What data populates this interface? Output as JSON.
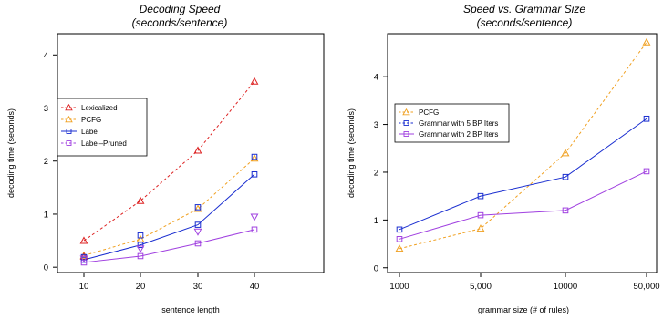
{
  "chart_data": [
    {
      "type": "line",
      "title": "Decoding Speed",
      "subtitle": "(seconds/sentence)",
      "xlabel": "sentence length",
      "ylabel": "decoding time (seconds)",
      "x": [
        10,
        20,
        30,
        40
      ],
      "x_tick_labels": [
        "10",
        "20",
        "30",
        "40"
      ],
      "y_ticks": [
        0,
        1,
        2,
        3,
        4
      ],
      "y_tick_labels": [
        "0",
        "1",
        "2",
        "3",
        "4"
      ],
      "ylim": [
        -0.1,
        4.4
      ],
      "grid": false,
      "legend_position": "left",
      "series": [
        {
          "name": "Lexicalized",
          "values": [
            0.5,
            1.25,
            2.2,
            3.5
          ],
          "color": "#dd2222",
          "marker": "triangle-up",
          "dash": "dashed"
        },
        {
          "name": "PCFG",
          "values": [
            0.22,
            0.53,
            1.1,
            2.05
          ],
          "color": "#f0a020",
          "marker": "triangle-up",
          "dash": "dashed"
        },
        {
          "name": "Label",
          "values": [
            0.14,
            0.42,
            0.8,
            1.75
          ],
          "color": "#1a2ed0",
          "marker": "square",
          "dash": "solid"
        },
        {
          "name": "Label–Pruned",
          "values": [
            0.09,
            0.21,
            0.45,
            0.71
          ],
          "color": "#a040e0",
          "marker": "square",
          "dash": "solid"
        }
      ],
      "extra_points": [
        {
          "series": "Lexicalized",
          "marker": "triangle-up",
          "color": "#dd2222",
          "points": [
            [
              10,
              0.2
            ]
          ]
        },
        {
          "series": "Label",
          "marker": "square",
          "color": "#1a2ed0",
          "points": [
            [
              10,
              0.19
            ],
            [
              20,
              0.6
            ],
            [
              30,
              1.13
            ],
            [
              40,
              2.08
            ]
          ]
        },
        {
          "series": "Label–Pruned",
          "marker": "triangle-down",
          "color": "#a040e0",
          "points": [
            [
              10,
              0.16
            ],
            [
              20,
              0.35
            ],
            [
              30,
              0.67
            ],
            [
              40,
              0.95
            ]
          ]
        }
      ]
    },
    {
      "type": "line",
      "title": "Speed vs. Grammar Size",
      "subtitle": "(seconds/sentence)",
      "xlabel": "grammar size (# of rules)",
      "ylabel": "decoding time (seconds)",
      "x": [
        1000,
        5000,
        10000,
        50000
      ],
      "x_tick_labels": [
        "1000",
        "5,000",
        "10000",
        "50,000"
      ],
      "y_ticks": [
        0,
        1,
        2,
        3,
        4
      ],
      "y_tick_labels": [
        "0",
        "1",
        "2",
        "3",
        "4"
      ],
      "ylim": [
        -0.1,
        4.9
      ],
      "grid": false,
      "legend_position": "top-left",
      "series": [
        {
          "name": "PCFG",
          "values": [
            0.4,
            0.82,
            2.4,
            4.72
          ],
          "color": "#f0a020",
          "marker": "triangle-up",
          "dash": "dashed"
        },
        {
          "name": "Grammar with 5 BP Iters",
          "values": [
            0.8,
            1.5,
            1.9,
            3.12
          ],
          "color": "#1a2ed0",
          "marker": "square",
          "dash": "solid"
        },
        {
          "name": "Grammar with 2 BP Iters",
          "values": [
            0.6,
            1.1,
            1.2,
            2.02
          ],
          "color": "#a040e0",
          "marker": "square",
          "dash": "solid"
        }
      ],
      "extra_points": []
    }
  ]
}
